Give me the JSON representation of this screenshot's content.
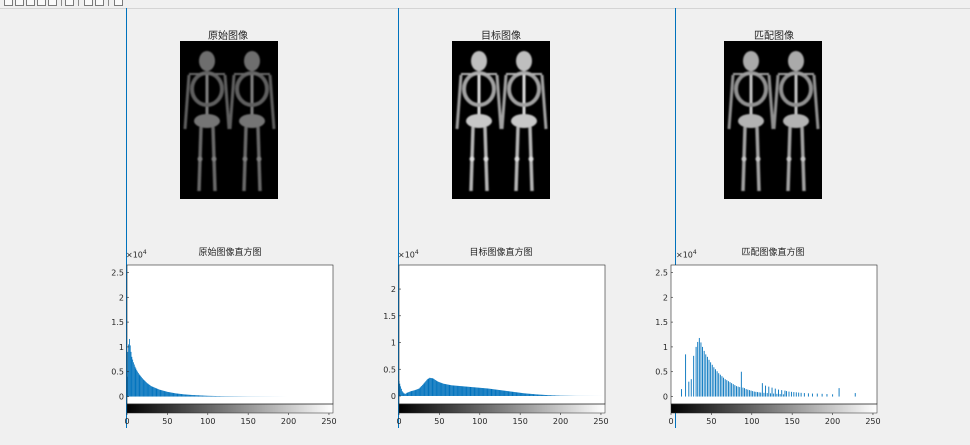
{
  "toolbar": {
    "buttons": [
      "new-icon",
      "open-icon",
      "save-icon",
      "print-icon",
      "select-icon",
      "zoom-icon",
      "pan-icon",
      "datatip-icon"
    ]
  },
  "images": [
    {
      "title": "原始图像",
      "brightness": 0.55
    },
    {
      "title": "目标图像",
      "brightness": 0.95
    },
    {
      "title": "匹配图像",
      "brightness": 0.85
    }
  ],
  "chart_data": [
    {
      "type": "bar",
      "title": "原始图像直方图",
      "xlim": [
        0,
        255
      ],
      "ylim": [
        -1500,
        26500
      ],
      "xticks": [
        "0",
        "50",
        "100",
        "150",
        "200",
        "250"
      ],
      "yticks": [
        "0",
        "0.5",
        "1",
        "1.5",
        "2",
        "2.5"
      ],
      "y_multiplier": "×10",
      "y_multiplier_exp": "4",
      "colorbar": "gray 0-255",
      "bar_color": "#0072bd",
      "profile": "smooth",
      "points": [
        [
          0,
          4000
        ],
        [
          1,
          9000
        ],
        [
          2,
          10500
        ],
        [
          3,
          11600
        ],
        [
          4,
          10300
        ],
        [
          5,
          9000
        ],
        [
          6,
          8000
        ],
        [
          8,
          6900
        ],
        [
          10,
          6000
        ],
        [
          12,
          5300
        ],
        [
          15,
          4500
        ],
        [
          20,
          3500
        ],
        [
          25,
          2700
        ],
        [
          30,
          2100
        ],
        [
          40,
          1400
        ],
        [
          50,
          950
        ],
        [
          60,
          650
        ],
        [
          70,
          450
        ],
        [
          80,
          320
        ],
        [
          100,
          150
        ],
        [
          120,
          70
        ],
        [
          150,
          25
        ],
        [
          200,
          0
        ],
        [
          255,
          0
        ]
      ]
    },
    {
      "type": "bar",
      "title": "目标图像直方图",
      "xlim": [
        0,
        255
      ],
      "ylim": [
        -1500,
        24500
      ],
      "xticks": [
        "0",
        "50",
        "100",
        "150",
        "200",
        "250"
      ],
      "yticks": [
        "0",
        "0.5",
        "1",
        "1.5",
        "2"
      ],
      "y_multiplier": "×10",
      "y_multiplier_exp": "4",
      "colorbar": "gray 0-255",
      "bar_color": "#0072bd",
      "profile": "smooth",
      "points": [
        [
          0,
          2800
        ],
        [
          2,
          1800
        ],
        [
          4,
          900
        ],
        [
          6,
          500
        ],
        [
          8,
          400
        ],
        [
          10,
          600
        ],
        [
          15,
          900
        ],
        [
          20,
          1100
        ],
        [
          25,
          1400
        ],
        [
          30,
          2200
        ],
        [
          35,
          3100
        ],
        [
          38,
          3400
        ],
        [
          42,
          3300
        ],
        [
          48,
          2700
        ],
        [
          55,
          2300
        ],
        [
          65,
          2000
        ],
        [
          80,
          1800
        ],
        [
          95,
          1600
        ],
        [
          110,
          1400
        ],
        [
          125,
          1100
        ],
        [
          140,
          800
        ],
        [
          155,
          500
        ],
        [
          170,
          300
        ],
        [
          185,
          150
        ],
        [
          200,
          60
        ],
        [
          220,
          15
        ],
        [
          255,
          0
        ]
      ]
    },
    {
      "type": "bar",
      "title": "匹配图像直方图",
      "xlim": [
        0,
        255
      ],
      "ylim": [
        -1500,
        26500
      ],
      "xticks": [
        "0",
        "50",
        "100",
        "150",
        "200",
        "250"
      ],
      "yticks": [
        "0",
        "0.5",
        "1",
        "1.5",
        "2",
        "2.5"
      ],
      "y_multiplier": "×10",
      "y_multiplier_exp": "4",
      "colorbar": "gray 0-255",
      "bar_color": "#0072bd",
      "profile": "spikes",
      "spikes": [
        [
          13,
          1500
        ],
        [
          18,
          8500
        ],
        [
          22,
          3000
        ],
        [
          25,
          3500
        ],
        [
          28,
          8200
        ],
        [
          31,
          10000
        ],
        [
          33,
          11000
        ],
        [
          35,
          11800
        ],
        [
          37,
          10900
        ],
        [
          39,
          10000
        ],
        [
          41,
          9200
        ],
        [
          43,
          8500
        ],
        [
          45,
          8000
        ],
        [
          47,
          7400
        ],
        [
          49,
          6900
        ],
        [
          51,
          6400
        ],
        [
          53,
          5900
        ],
        [
          55,
          5500
        ],
        [
          57,
          5100
        ],
        [
          59,
          4700
        ],
        [
          61,
          4400
        ],
        [
          63,
          4100
        ],
        [
          65,
          3800
        ],
        [
          67,
          3500
        ],
        [
          69,
          3300
        ],
        [
          71,
          3100
        ],
        [
          73,
          2900
        ],
        [
          75,
          2700
        ],
        [
          77,
          2500
        ],
        [
          79,
          2300
        ],
        [
          81,
          2100
        ],
        [
          83,
          2000
        ],
        [
          85,
          1900
        ],
        [
          87,
          5000
        ],
        [
          89,
          1800
        ],
        [
          91,
          1700
        ],
        [
          93,
          1500
        ],
        [
          95,
          1400
        ],
        [
          97,
          1300
        ],
        [
          99,
          1200
        ],
        [
          101,
          1100
        ],
        [
          103,
          1000
        ],
        [
          105,
          950
        ],
        [
          107,
          900
        ],
        [
          109,
          850
        ],
        [
          111,
          800
        ],
        [
          113,
          2700
        ],
        [
          115,
          750
        ],
        [
          117,
          2200
        ],
        [
          119,
          700
        ],
        [
          121,
          2000
        ],
        [
          123,
          650
        ],
        [
          125,
          1800
        ],
        [
          127,
          600
        ],
        [
          129,
          1600
        ],
        [
          131,
          550
        ],
        [
          133,
          1400
        ],
        [
          135,
          500
        ],
        [
          137,
          1300
        ],
        [
          139,
          450
        ],
        [
          141,
          1200
        ],
        [
          143,
          1100
        ],
        [
          146,
          1000
        ],
        [
          149,
          950
        ],
        [
          152,
          900
        ],
        [
          155,
          850
        ],
        [
          158,
          800
        ],
        [
          161,
          750
        ],
        [
          165,
          700
        ],
        [
          170,
          650
        ],
        [
          175,
          600
        ],
        [
          181,
          600
        ],
        [
          187,
          550
        ],
        [
          193,
          500
        ],
        [
          200,
          450
        ],
        [
          208,
          1700
        ],
        [
          228,
          700
        ]
      ]
    }
  ]
}
